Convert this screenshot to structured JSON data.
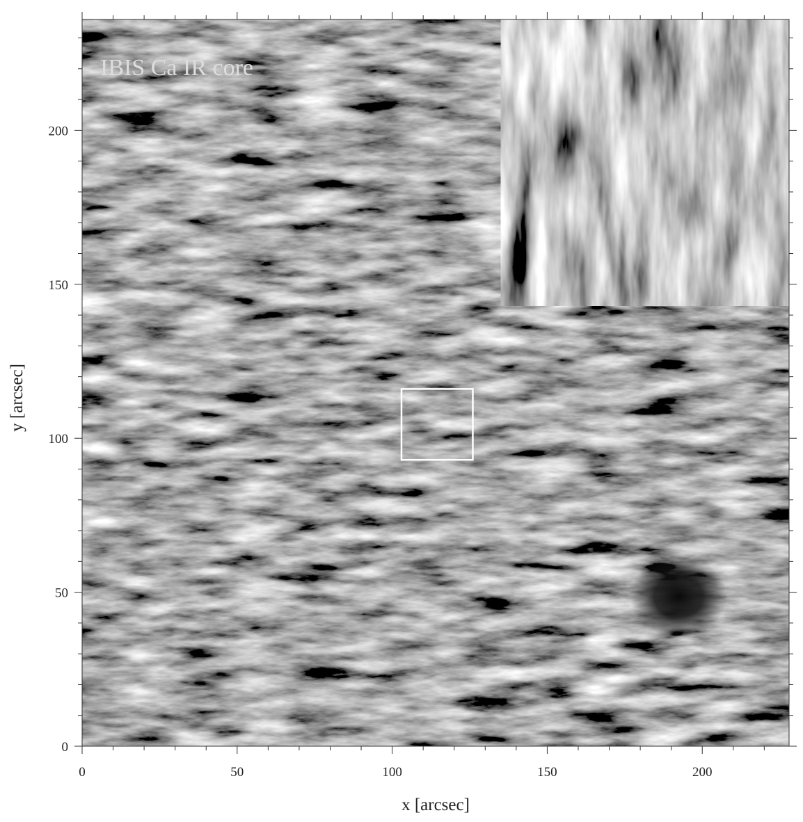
{
  "chart_data": {
    "type": "image",
    "annotation": "IBIS Ca IR core",
    "xlabel": "x  [arcsec]",
    "ylabel": "y  [arcsec]",
    "xlim": [
      0,
      228
    ],
    "ylim": [
      0,
      236
    ],
    "xticks": [
      0,
      50,
      100,
      150,
      200
    ],
    "yticks": [
      0,
      50,
      100,
      150,
      200
    ],
    "xminorticks": [
      10,
      20,
      30,
      40,
      60,
      70,
      80,
      90,
      110,
      120,
      130,
      140,
      160,
      170,
      180,
      190,
      210,
      220
    ],
    "yminorticks": [
      10,
      20,
      30,
      40,
      60,
      70,
      80,
      90,
      110,
      120,
      130,
      140,
      160,
      170,
      180,
      190,
      210,
      220,
      230
    ],
    "colormap": "gray",
    "zoom_box": {
      "x": [
        103,
        126
      ],
      "y": [
        93,
        116
      ]
    },
    "inset": {
      "x": [
        135,
        228
      ],
      "y": [
        143,
        236
      ]
    }
  }
}
